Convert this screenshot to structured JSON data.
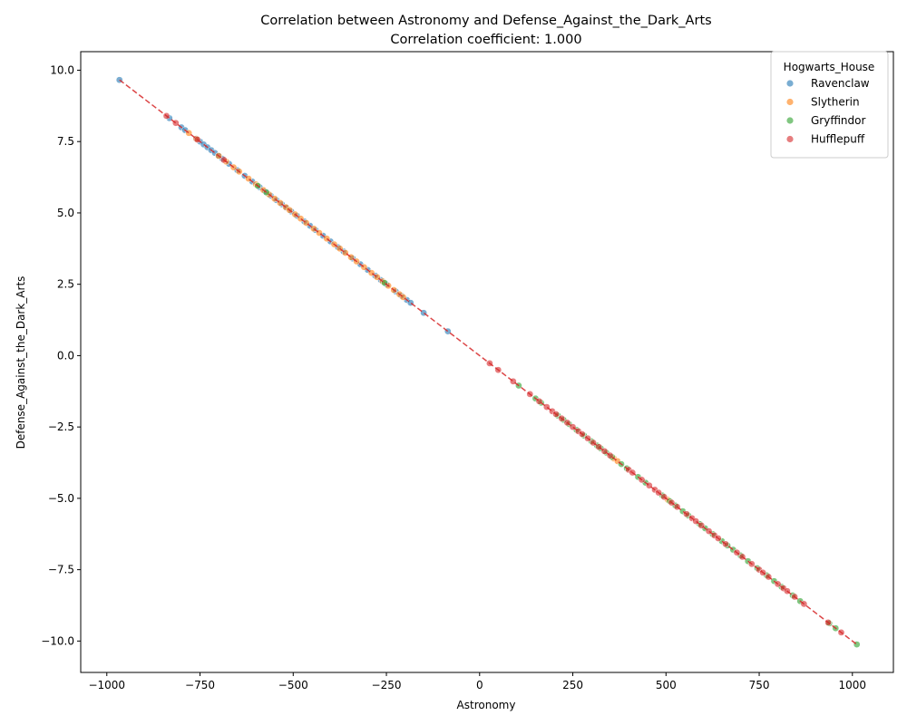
{
  "chart_data": {
    "type": "scatter",
    "title": "Correlation between Astronomy and Defense_Against_the_Dark_Arts",
    "subtitle": "Correlation coefficient: 1.000",
    "xlabel": "Astronomy",
    "ylabel": "Defense_Against_the_Dark_Arts",
    "xlim": [
      -1070,
      1110
    ],
    "ylim": [
      -11.1,
      10.65
    ],
    "x_ticks": [
      -1000,
      -750,
      -500,
      -250,
      0,
      250,
      500,
      750,
      1000
    ],
    "x_tick_labels": [
      "−1000",
      "−750",
      "−500",
      "−250",
      "0",
      "250",
      "500",
      "750",
      "1000"
    ],
    "y_ticks": [
      -10,
      -7.5,
      -5,
      -2.5,
      0,
      2.5,
      5,
      7.5,
      10
    ],
    "y_tick_labels": [
      "−10.0",
      "−7.5",
      "−5.0",
      "−2.5",
      "0.0",
      "2.5",
      "5.0",
      "7.5",
      "10.0"
    ],
    "grid": false,
    "legend": {
      "title": "Hogwarts_House",
      "placement": "top-right"
    },
    "regression": {
      "slope": -0.01,
      "intercept": 0.0,
      "x_range": [
        -966,
        1012
      ],
      "color": "#d62728",
      "style": "dashed"
    },
    "series": [
      {
        "name": "Ravenclaw",
        "color": "#1f77b4",
        "x": [
          -966,
          -832,
          -800,
          -790,
          -760,
          -750,
          -740,
          -730,
          -720,
          -710,
          -700,
          -690,
          -672,
          -650,
          -630,
          -610,
          -590,
          -575,
          -560,
          -545,
          -530,
          -518,
          -505,
          -490,
          -470,
          -455,
          -440,
          -420,
          -400,
          -380,
          -365,
          -340,
          -320,
          -300,
          -280,
          -265,
          -250,
          -225,
          -210,
          -195,
          -185,
          -150,
          -85
        ]
      },
      {
        "name": "Slytherin",
        "color": "#ff7f0e",
        "x": [
          -780,
          -760,
          -700,
          -680,
          -660,
          -645,
          -620,
          -600,
          -580,
          -565,
          -550,
          -535,
          -520,
          -510,
          -495,
          -480,
          -465,
          -445,
          -430,
          -410,
          -390,
          -375,
          -360,
          -345,
          -330,
          -310,
          -290,
          -275,
          -260,
          -245,
          -230,
          -215,
          -205,
          360,
          370,
          505
        ]
      },
      {
        "name": "Gryffindor",
        "color": "#2ca02c",
        "x": [
          -595,
          -572,
          -255,
          105,
          150,
          165,
          210,
          225,
          240,
          260,
          280,
          300,
          315,
          325,
          340,
          355,
          380,
          395,
          425,
          445,
          490,
          510,
          525,
          545,
          560,
          590,
          605,
          625,
          650,
          665,
          680,
          700,
          720,
          745,
          770,
          790,
          810,
          840,
          860,
          938,
          955,
          1012
        ]
      },
      {
        "name": "Hufflepuff",
        "color": "#d62728",
        "x": [
          -840,
          -815,
          -757,
          -686,
          27,
          50,
          90,
          135,
          160,
          180,
          195,
          205,
          220,
          235,
          250,
          265,
          275,
          290,
          305,
          320,
          335,
          350,
          400,
          410,
          435,
          455,
          470,
          480,
          495,
          515,
          530,
          555,
          570,
          580,
          595,
          615,
          630,
          640,
          660,
          690,
          705,
          730,
          750,
          760,
          775,
          800,
          815,
          825,
          845,
          870,
          935,
          970
        ]
      }
    ]
  }
}
